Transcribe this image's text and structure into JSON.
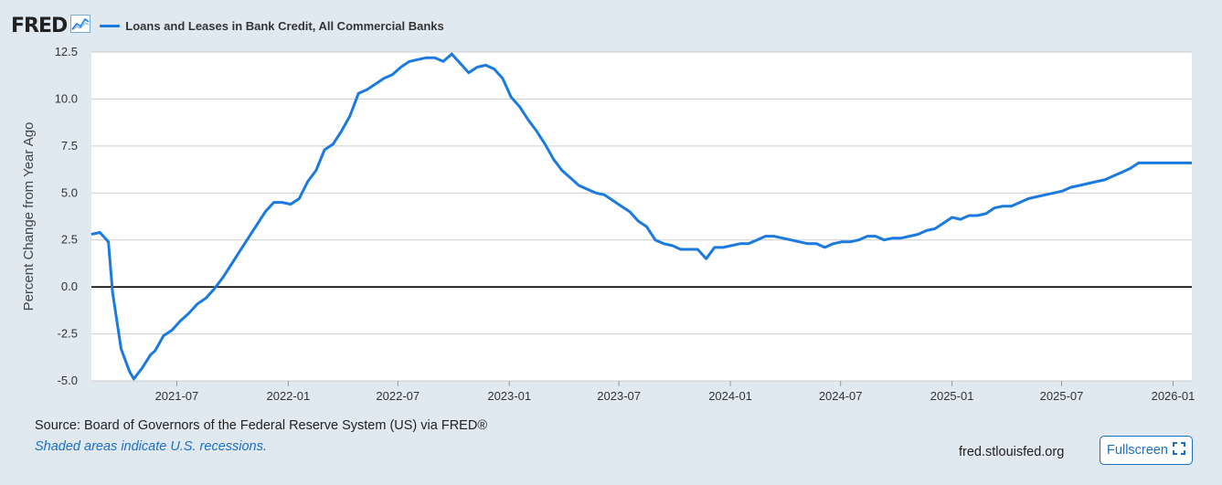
{
  "brand": {
    "logo_text": "FRED",
    "logo_icon": "line-graph-icon"
  },
  "colors": {
    "series": "#1a7ae0",
    "background": "#e1e9f0",
    "plot_bg": "#ffffff",
    "grid": "#cccccc",
    "zero_line": "#000000",
    "link": "#1a6fc4"
  },
  "footer": {
    "source": "Source: Board of Governors of the Federal Reserve System (US) via FRED®",
    "note": "Shaded areas indicate U.S. recessions.",
    "site": "fred.stlouisfed.org",
    "fullscreen_label": "Fullscreen",
    "fullscreen_icon": "expand-icon"
  },
  "chart_data": {
    "type": "line",
    "title": "",
    "xlabel": "",
    "ylabel": "Percent Change from Year Ago",
    "ylim": [
      -5.0,
      12.5
    ],
    "xlim": [
      "2021-02-10",
      "2026-02-01"
    ],
    "grid": true,
    "legend_position": "top-left",
    "y_ticks": [
      "12.5",
      "10.0",
      "7.5",
      "5.0",
      "2.5",
      "0.0",
      "-2.5",
      "-5.0"
    ],
    "y_tick_values": [
      12.5,
      10.0,
      7.5,
      5.0,
      2.5,
      0.0,
      -2.5,
      -5.0
    ],
    "x_ticks": [
      "2021-07",
      "2022-01",
      "2022-07",
      "2023-01",
      "2023-07",
      "2024-01",
      "2024-07",
      "2025-01",
      "2025-07",
      "2026-01"
    ],
    "x_tick_dates": [
      "2021-07-01",
      "2022-01-01",
      "2022-07-01",
      "2023-01-01",
      "2023-07-01",
      "2024-01-01",
      "2024-07-01",
      "2025-01-01",
      "2025-07-01",
      "2026-01-01"
    ],
    "series": [
      {
        "name": "Loans and Leases in Bank Credit, All Commercial Banks",
        "x": [
          "2021-02-10",
          "2021-02-24",
          "2021-03-10",
          "2021-03-17",
          "2021-03-31",
          "2021-04-14",
          "2021-04-21",
          "2021-05-05",
          "2021-05-19",
          "2021-05-26",
          "2021-06-09",
          "2021-06-23",
          "2021-07-07",
          "2021-07-21",
          "2021-08-04",
          "2021-08-18",
          "2021-09-01",
          "2021-09-15",
          "2021-09-29",
          "2021-10-13",
          "2021-10-27",
          "2021-11-10",
          "2021-11-24",
          "2021-12-08",
          "2021-12-22",
          "2022-01-05",
          "2022-01-19",
          "2022-02-02",
          "2022-02-16",
          "2022-03-02",
          "2022-03-16",
          "2022-03-30",
          "2022-04-13",
          "2022-04-27",
          "2022-05-11",
          "2022-05-25",
          "2022-06-08",
          "2022-06-22",
          "2022-07-06",
          "2022-07-20",
          "2022-08-03",
          "2022-08-17",
          "2022-08-31",
          "2022-09-14",
          "2022-09-28",
          "2022-10-12",
          "2022-10-26",
          "2022-11-09",
          "2022-11-23",
          "2022-12-07",
          "2022-12-21",
          "2023-01-04",
          "2023-01-18",
          "2023-02-01",
          "2023-02-15",
          "2023-03-01",
          "2023-03-15",
          "2023-03-29",
          "2023-04-12",
          "2023-04-26",
          "2023-05-10",
          "2023-05-24",
          "2023-06-07",
          "2023-06-21",
          "2023-07-05",
          "2023-07-19",
          "2023-08-02",
          "2023-08-16",
          "2023-08-30",
          "2023-09-13",
          "2023-09-27",
          "2023-10-11",
          "2023-10-25",
          "2023-11-08",
          "2023-11-22",
          "2023-12-06",
          "2023-12-20",
          "2024-01-03",
          "2024-01-17",
          "2024-01-31",
          "2024-02-14",
          "2024-02-28",
          "2024-03-13",
          "2024-03-27",
          "2024-04-10",
          "2024-04-24",
          "2024-05-08",
          "2024-05-22",
          "2024-06-05",
          "2024-06-19",
          "2024-07-03",
          "2024-07-17",
          "2024-07-31",
          "2024-08-14",
          "2024-08-28",
          "2024-09-11",
          "2024-09-25",
          "2024-10-09",
          "2024-10-23",
          "2024-11-06",
          "2024-11-20",
          "2024-12-04",
          "2024-12-18",
          "2025-01-01",
          "2025-01-15",
          "2025-01-29",
          "2025-02-12",
          "2025-02-26",
          "2025-03-12",
          "2025-03-26",
          "2025-04-09",
          "2025-04-23",
          "2025-05-07",
          "2025-05-21",
          "2025-06-04",
          "2025-06-18",
          "2025-07-02",
          "2025-07-16",
          "2025-07-30",
          "2025-08-13",
          "2025-08-27",
          "2025-09-10",
          "2025-09-24",
          "2025-10-08",
          "2025-10-22",
          "2025-11-05",
          "2025-11-19",
          "2025-12-03",
          "2025-12-17",
          "2025-12-31",
          "2026-01-14",
          "2026-01-28",
          "2026-02-01"
        ],
        "values": [
          2.8,
          2.9,
          2.4,
          -0.3,
          -3.3,
          -4.5,
          -4.9,
          -4.3,
          -3.6,
          -3.4,
          -2.6,
          -2.3,
          -1.8,
          -1.4,
          -0.9,
          -0.6,
          -0.1,
          0.5,
          1.2,
          1.9,
          2.6,
          3.3,
          4.0,
          4.5,
          4.5,
          4.4,
          4.7,
          5.6,
          6.2,
          7.3,
          7.6,
          8.3,
          9.1,
          10.3,
          10.5,
          10.8,
          11.1,
          11.3,
          11.7,
          12.0,
          12.1,
          12.2,
          12.2,
          12.0,
          12.4,
          11.9,
          11.4,
          11.7,
          11.8,
          11.6,
          11.1,
          10.1,
          9.6,
          8.9,
          8.3,
          7.6,
          6.8,
          6.2,
          5.8,
          5.4,
          5.2,
          5.0,
          4.9,
          4.6,
          4.3,
          4.0,
          3.5,
          3.2,
          2.5,
          2.3,
          2.2,
          2.0,
          2.0,
          2.0,
          1.5,
          2.1,
          2.1,
          2.2,
          2.3,
          2.3,
          2.5,
          2.7,
          2.7,
          2.6,
          2.5,
          2.4,
          2.3,
          2.3,
          2.1,
          2.3,
          2.4,
          2.4,
          2.5,
          2.7,
          2.7,
          2.5,
          2.6,
          2.6,
          2.7,
          2.8,
          3.0,
          3.1,
          3.4,
          3.7,
          3.6,
          3.8,
          3.8,
          3.9,
          4.2,
          4.3,
          4.3,
          4.5,
          4.7,
          4.8,
          4.9,
          5.0,
          5.1,
          5.3,
          5.4,
          5.5,
          5.6,
          5.7,
          5.9,
          6.1,
          6.3,
          6.6,
          6.6,
          6.6,
          6.6,
          6.6,
          6.6,
          6.6,
          6.6
        ]
      }
    ]
  }
}
